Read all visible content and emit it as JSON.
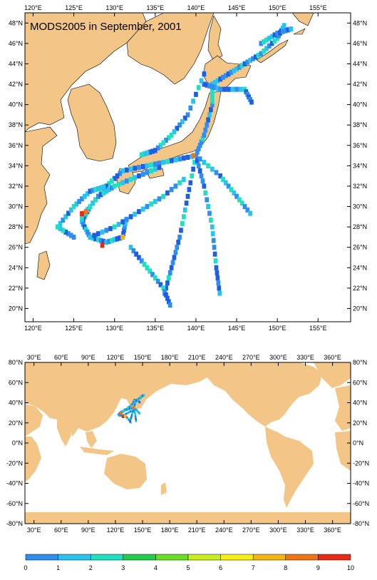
{
  "title": "MODS2005 in September, 2001",
  "regional_map": {
    "lon_ticks": [
      "120°E",
      "125°E",
      "130°E",
      "135°E",
      "140°E",
      "145°E",
      "150°E",
      "155°E"
    ],
    "lat_ticks": [
      "48°N",
      "46°N",
      "44°N",
      "42°N",
      "40°N",
      "38°N",
      "36°N",
      "34°N",
      "32°N",
      "30°N",
      "28°N",
      "26°N",
      "24°N",
      "22°N",
      "20°N"
    ]
  },
  "global_map": {
    "lon_ticks": [
      "30°E",
      "60°E",
      "90°E",
      "120°E",
      "150°E",
      "180°E",
      "210°E",
      "240°E",
      "270°E",
      "300°E",
      "330°E",
      "360°E"
    ],
    "lat_ticks": [
      "80°N",
      "60°N",
      "40°N",
      "20°N",
      "0°N",
      "-20°N",
      "-40°N",
      "-60°N",
      "-80°N"
    ]
  },
  "colorbar": {
    "labels": [
      "0",
      "1",
      "2",
      "3",
      "4",
      "5",
      "6",
      "7",
      "8",
      "9",
      "10"
    ],
    "colors": [
      "#1c5fe0",
      "#2f8ef0",
      "#28c4ee",
      "#1fe0c0",
      "#22cc4a",
      "#66e020",
      "#c8ee1e",
      "#f8ee14",
      "#f4b414",
      "#f07414",
      "#e82a14"
    ]
  },
  "colors": {
    "land": "#f3c587",
    "ocean": "#ffffff"
  }
}
